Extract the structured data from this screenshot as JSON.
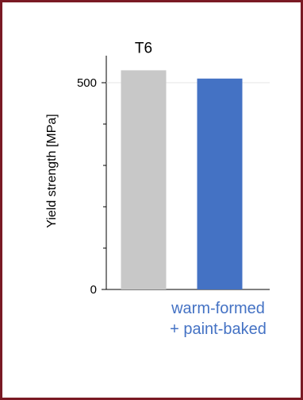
{
  "chart_data": {
    "type": "bar",
    "title": "",
    "ylabel": "Yield strength [MPa]",
    "xlabel": "",
    "ylim": [
      0,
      560
    ],
    "yticks": [
      0,
      500
    ],
    "ytick_labels": [
      "0",
      "500"
    ],
    "grid": false,
    "legend": "none",
    "categories": [
      {
        "label_lines": [
          "T6"
        ],
        "value": 530,
        "color": "#c8c8c8",
        "label_color": "#000000",
        "label_position": "above"
      },
      {
        "label_lines": [
          "warm-formed",
          "+ paint-baked"
        ],
        "value": 510,
        "color": "#4472c4",
        "label_color": "#4472c4",
        "label_position": "below"
      }
    ]
  },
  "colors": {
    "frame": "#7a1a24",
    "axis": "#000000"
  }
}
